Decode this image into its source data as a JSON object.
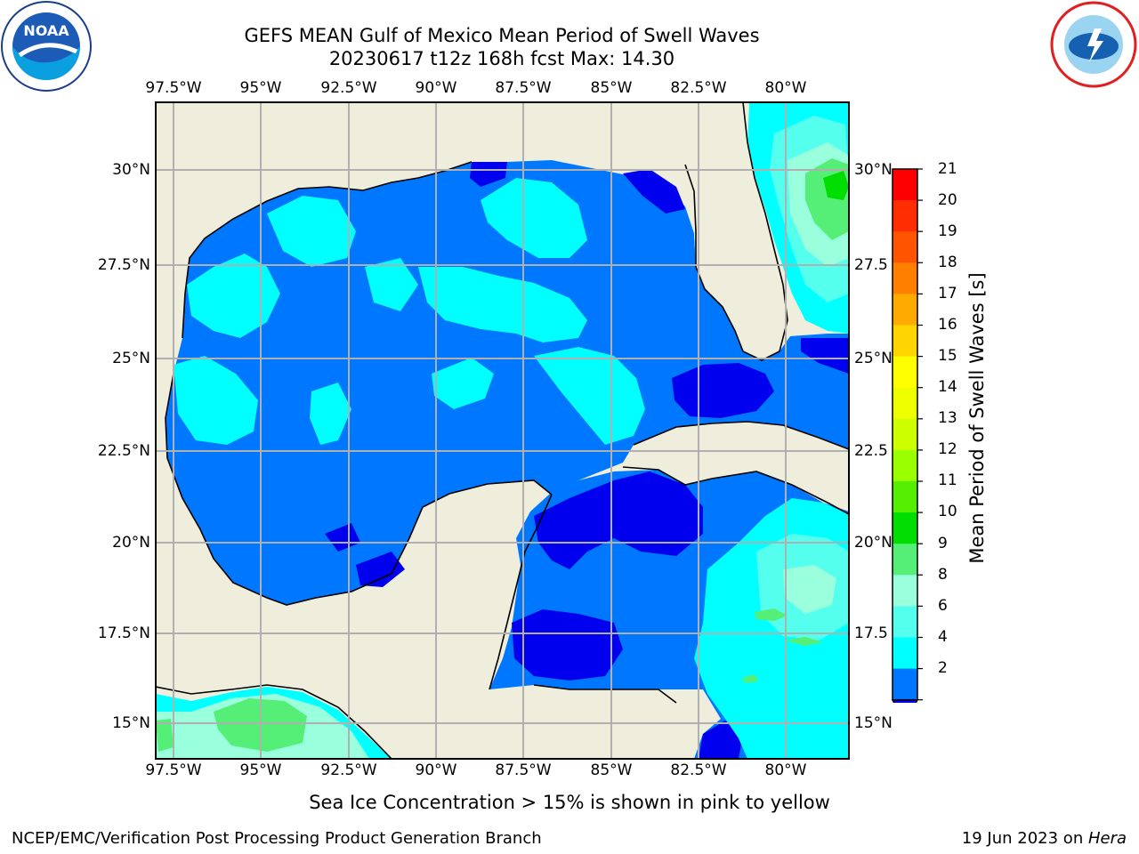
{
  "header": {
    "title_line1": "GEFS MEAN Gulf of Mexico Mean Period of Swell Waves",
    "title_line2": "20230617 t12z 168h fcst   Max: 14.30"
  },
  "logos": {
    "left": "noaa-logo",
    "right": "national-weather-service-logo"
  },
  "axes": {
    "lon_ticks": [
      "97.5°W",
      "95°W",
      "92.5°W",
      "90°W",
      "87.5°W",
      "85°W",
      "82.5°W",
      "80°W"
    ],
    "lat_ticks_left": [
      "30°N",
      "27.5°N",
      "25°N",
      "22.5°N",
      "20°N",
      "17.5°N",
      "15°N"
    ],
    "lat_ticks_right": [
      "30°N",
      "27.5",
      "25°N",
      "22.5",
      "20°N",
      "17.5",
      "15°N"
    ]
  },
  "colorbar": {
    "label": "Mean Period of Swell Waves [s]",
    "ticks": [
      "21",
      "20",
      "19",
      "18",
      "17",
      "16",
      "15",
      "14",
      "13",
      "12",
      "11",
      "10",
      "9",
      "8",
      "6",
      "4",
      "2"
    ],
    "colors": [
      "#fe0000",
      "#ff2d00",
      "#ff5500",
      "#ff8000",
      "#ffaa00",
      "#ffd500",
      "#ffff00",
      "#eeff00",
      "#ccff00",
      "#9aff00",
      "#55ee00",
      "#00dd00",
      "#55ee77",
      "#99ffdd",
      "#55ffee",
      "#00ffff",
      "#0077ff",
      "#0000ee"
    ]
  },
  "map": {
    "land_color": "#efeedc",
    "swell_colors": {
      "c2": "#0000ee",
      "c4": "#0077ff",
      "c6": "#00ffff",
      "c8": "#55ffee",
      "c9": "#99ffdd",
      "c10": "#55ee77",
      "c11": "#00dd00"
    }
  },
  "footer": {
    "note": "Sea Ice Concentration > 15% is shown in pink to yellow",
    "credit": "NCEP/EMC/Verification Post Processing Product Generation Branch",
    "date": "19 Jun 2023 on ",
    "machine": "Hera"
  }
}
